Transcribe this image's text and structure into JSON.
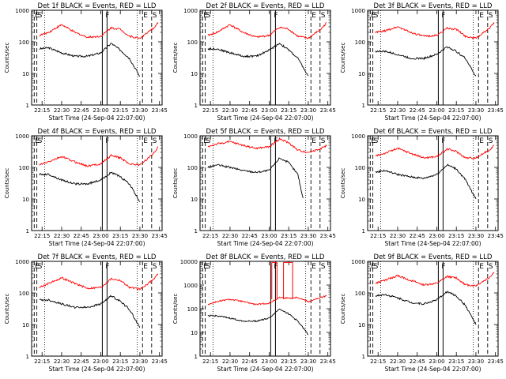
{
  "colors": {
    "events": "#000000",
    "lld": "#ff0000",
    "background": "#ffffff"
  },
  "chart_data": [
    {
      "type": "line",
      "title": "Det 1f BLACK = Events, RED = LLD",
      "ylabel": "Counts/sec",
      "xlabel": "Start Time (24-Sep-04 22:07:00)",
      "x_ticks": [
        "22:15",
        "22:30",
        "22:45",
        "23:00",
        "23:15",
        "23:30",
        "23:45"
      ],
      "y_ticks": [
        "1",
        "10",
        "100",
        "1000"
      ],
      "yscale": "log",
      "ylim": [
        1,
        1000
      ],
      "xlim": [
        "22:07",
        "23:47"
      ],
      "markers": [
        {
          "label": "E",
          "time": "22:09"
        },
        {
          "label": "S",
          "time": "22:11"
        },
        {
          "label": "F",
          "time": "23:03"
        },
        {
          "label": "E",
          "time": "23:32"
        },
        {
          "label": "S",
          "time": "23:39"
        }
      ],
      "series": [
        {
          "name": "Events",
          "x": [
            "22:13",
            "22:20",
            "22:30",
            "22:40",
            "22:50",
            "23:00",
            "23:08",
            "23:15",
            "23:22",
            "23:30"
          ],
          "y": [
            60,
            65,
            45,
            35,
            35,
            45,
            90,
            55,
            30,
            8
          ]
        },
        {
          "name": "LLD",
          "x": [
            "22:13",
            "22:20",
            "22:30",
            "22:40",
            "22:50",
            "23:00",
            "23:08",
            "23:15",
            "23:22",
            "23:30",
            "23:40",
            "23:44"
          ],
          "y": [
            160,
            200,
            350,
            200,
            140,
            150,
            280,
            250,
            150,
            130,
            260,
            400
          ]
        }
      ]
    },
    {
      "type": "line",
      "title": "Det 2f BLACK = Events, RED = LLD",
      "ylabel": "Counts/sec",
      "xlabel": "Start Time (24-Sep-04 22:07:00)",
      "x_ticks": [
        "22:15",
        "22:30",
        "22:45",
        "23:00",
        "23:15",
        "23:30",
        "23:45"
      ],
      "y_ticks": [
        "1",
        "10",
        "100",
        "1000"
      ],
      "yscale": "log",
      "ylim": [
        1,
        1000
      ],
      "xlim": [
        "22:07",
        "23:47"
      ],
      "markers": [
        {
          "label": "E",
          "time": "22:09"
        },
        {
          "label": "S",
          "time": "22:11"
        },
        {
          "label": "F",
          "time": "23:03"
        },
        {
          "label": "E",
          "time": "23:32"
        },
        {
          "label": "S",
          "time": "23:39"
        }
      ],
      "series": [
        {
          "name": "Events",
          "x": [
            "22:13",
            "22:20",
            "22:30",
            "22:40",
            "22:50",
            "23:00",
            "23:08",
            "23:15",
            "23:22",
            "23:30"
          ],
          "y": [
            60,
            60,
            45,
            35,
            35,
            55,
            90,
            55,
            30,
            8
          ]
        },
        {
          "name": "LLD",
          "x": [
            "22:13",
            "22:20",
            "22:30",
            "22:40",
            "22:50",
            "23:00",
            "23:08",
            "23:15",
            "23:22",
            "23:30",
            "23:40",
            "23:44"
          ],
          "y": [
            160,
            200,
            350,
            200,
            140,
            160,
            290,
            250,
            150,
            130,
            260,
            400
          ]
        }
      ]
    },
    {
      "type": "line",
      "title": "Det 3f BLACK = Events, RED = LLD",
      "ylabel": "Counts/sec",
      "xlabel": "Start Time (24-Sep-04 22:07:00)",
      "x_ticks": [
        "22:15",
        "22:30",
        "22:45",
        "23:00",
        "23:15",
        "23:30",
        "23:45"
      ],
      "y_ticks": [
        "1",
        "10",
        "100",
        "1000"
      ],
      "yscale": "log",
      "ylim": [
        1,
        1000
      ],
      "xlim": [
        "22:07",
        "23:47"
      ],
      "markers": [
        {
          "label": "E",
          "time": "22:09"
        },
        {
          "label": "S",
          "time": "22:11"
        },
        {
          "label": "F",
          "time": "23:03"
        },
        {
          "label": "E",
          "time": "23:32"
        },
        {
          "label": "S",
          "time": "23:39"
        }
      ],
      "series": [
        {
          "name": "Events",
          "x": [
            "22:13",
            "22:20",
            "22:30",
            "22:40",
            "22:50",
            "23:00",
            "23:08",
            "23:15",
            "23:22",
            "23:30"
          ],
          "y": [
            50,
            50,
            40,
            30,
            30,
            40,
            70,
            50,
            30,
            8
          ]
        },
        {
          "name": "LLD",
          "x": [
            "22:13",
            "22:20",
            "22:30",
            "22:40",
            "22:50",
            "23:00",
            "23:08",
            "23:15",
            "23:22",
            "23:30",
            "23:40",
            "23:44"
          ],
          "y": [
            200,
            220,
            300,
            200,
            150,
            160,
            270,
            250,
            150,
            130,
            260,
            400
          ]
        }
      ]
    },
    {
      "type": "line",
      "title": "Det 4f BLACK = Events, RED = LLD",
      "ylabel": "Counts/sec",
      "xlabel": "Start Time (24-Sep-04 22:07:00)",
      "x_ticks": [
        "22:15",
        "22:30",
        "22:45",
        "23:00",
        "23:15",
        "23:30",
        "23:45"
      ],
      "y_ticks": [
        "1",
        "10",
        "100",
        "1000"
      ],
      "yscale": "log",
      "ylim": [
        1,
        1000
      ],
      "xlim": [
        "22:07",
        "23:47"
      ],
      "markers": [
        {
          "label": "E",
          "time": "22:09"
        },
        {
          "label": "S",
          "time": "22:11"
        },
        {
          "label": "F",
          "time": "23:03"
        },
        {
          "label": "E",
          "time": "23:32"
        },
        {
          "label": "S",
          "time": "23:39"
        }
      ],
      "series": [
        {
          "name": "Events",
          "x": [
            "22:13",
            "22:20",
            "22:30",
            "22:40",
            "22:50",
            "23:00",
            "23:08",
            "23:15",
            "23:22",
            "23:30"
          ],
          "y": [
            60,
            60,
            40,
            30,
            30,
            40,
            70,
            50,
            30,
            8
          ]
        },
        {
          "name": "LLD",
          "x": [
            "22:13",
            "22:20",
            "22:30",
            "22:40",
            "22:50",
            "23:00",
            "23:08",
            "23:15",
            "23:22",
            "23:30",
            "23:40",
            "23:44"
          ],
          "y": [
            120,
            150,
            220,
            150,
            110,
            130,
            240,
            200,
            130,
            120,
            260,
            450
          ]
        }
      ]
    },
    {
      "type": "line",
      "title": "Det 5f BLACK = Events, RED = LLD",
      "ylabel": "Counts/sec",
      "xlabel": "Start Time (24-Sep-04 22:07:00)",
      "x_ticks": [
        "22:15",
        "22:30",
        "22:45",
        "23:00",
        "23:15",
        "23:30",
        "23:45"
      ],
      "y_ticks": [
        "1",
        "10",
        "100",
        "1000"
      ],
      "yscale": "log",
      "ylim": [
        1,
        1000
      ],
      "xlim": [
        "22:07",
        "23:47"
      ],
      "markers": [
        {
          "label": "E",
          "time": "22:09"
        },
        {
          "label": "S",
          "time": "22:11"
        },
        {
          "label": "F",
          "time": "23:03"
        },
        {
          "label": "E",
          "time": "23:32"
        },
        {
          "label": "S",
          "time": "23:39"
        }
      ],
      "series": [
        {
          "name": "Events",
          "x": [
            "22:13",
            "22:20",
            "22:30",
            "22:40",
            "22:50",
            "23:00",
            "23:08",
            "23:15",
            "23:22",
            "23:26"
          ],
          "y": [
            100,
            120,
            100,
            80,
            70,
            80,
            200,
            140,
            60,
            10
          ]
        },
        {
          "name": "LLD",
          "x": [
            "22:13",
            "22:20",
            "22:30",
            "22:40",
            "22:50",
            "23:00",
            "23:08",
            "23:15",
            "23:22",
            "23:30",
            "23:40",
            "23:44"
          ],
          "y": [
            450,
            550,
            650,
            500,
            400,
            450,
            800,
            600,
            350,
            300,
            400,
            500
          ]
        }
      ]
    },
    {
      "type": "line",
      "title": "Det 6f BLACK = Events, RED = LLD",
      "ylabel": "Counts/sec",
      "xlabel": "Start Time (24-Sep-04 22:07:00)",
      "x_ticks": [
        "22:15",
        "22:30",
        "22:45",
        "23:00",
        "23:15",
        "23:30",
        "23:45"
      ],
      "y_ticks": [
        "1",
        "10",
        "100",
        "1000"
      ],
      "yscale": "log",
      "ylim": [
        1,
        1000
      ],
      "xlim": [
        "22:07",
        "23:47"
      ],
      "markers": [
        {
          "label": "E",
          "time": "22:09"
        },
        {
          "label": "S",
          "time": "22:11"
        },
        {
          "label": "F",
          "time": "23:03"
        },
        {
          "label": "E",
          "time": "23:32"
        },
        {
          "label": "S",
          "time": "23:39"
        }
      ],
      "series": [
        {
          "name": "Events",
          "x": [
            "22:13",
            "22:20",
            "22:30",
            "22:40",
            "22:50",
            "23:00",
            "23:08",
            "23:15",
            "23:22",
            "23:30"
          ],
          "y": [
            70,
            80,
            60,
            50,
            45,
            60,
            120,
            90,
            40,
            10
          ]
        },
        {
          "name": "LLD",
          "x": [
            "22:13",
            "22:20",
            "22:30",
            "22:40",
            "22:50",
            "23:00",
            "23:08",
            "23:15",
            "23:22",
            "23:30",
            "23:40",
            "23:44"
          ],
          "y": [
            230,
            280,
            400,
            280,
            200,
            220,
            380,
            320,
            200,
            200,
            350,
            500
          ]
        }
      ]
    },
    {
      "type": "line",
      "title": "Det 7f BLACK = Events, RED = LLD",
      "ylabel": "Counts/sec",
      "xlabel": "Start Time (24-Sep-04 22:07:00)",
      "x_ticks": [
        "22:15",
        "22:30",
        "22:45",
        "23:00",
        "23:15",
        "23:30",
        "23:45"
      ],
      "y_ticks": [
        "1",
        "10",
        "100",
        "1000"
      ],
      "yscale": "log",
      "ylim": [
        1,
        1000
      ],
      "xlim": [
        "22:07",
        "23:47"
      ],
      "markers": [
        {
          "label": "E",
          "time": "22:09"
        },
        {
          "label": "S",
          "time": "22:11"
        },
        {
          "label": "F",
          "time": "23:03"
        },
        {
          "label": "E",
          "time": "23:32"
        },
        {
          "label": "S",
          "time": "23:39"
        }
      ],
      "series": [
        {
          "name": "Events",
          "x": [
            "22:13",
            "22:20",
            "22:30",
            "22:40",
            "22:50",
            "23:00",
            "23:08",
            "23:15",
            "23:22",
            "23:30"
          ],
          "y": [
            60,
            60,
            45,
            35,
            35,
            45,
            80,
            55,
            30,
            8
          ]
        },
        {
          "name": "LLD",
          "x": [
            "22:13",
            "22:20",
            "22:30",
            "22:40",
            "22:50",
            "23:00",
            "23:08",
            "23:15",
            "23:22",
            "23:30",
            "23:40",
            "23:44"
          ],
          "y": [
            150,
            200,
            300,
            200,
            140,
            150,
            280,
            250,
            150,
            130,
            260,
            400
          ]
        }
      ]
    },
    {
      "type": "line",
      "title": "Det 8f BLACK = Events, RED = LLD",
      "ylabel": "Counts/sec",
      "xlabel": "Start Time (24-Sep-04 22:07:00)",
      "x_ticks": [
        "22:15",
        "22:30",
        "22:45",
        "23:00",
        "23:15",
        "23:30",
        "23:45"
      ],
      "y_ticks": [
        "1",
        "10",
        "100",
        "1000",
        "10000"
      ],
      "yscale": "log",
      "ylim": [
        1,
        10000
      ],
      "xlim": [
        "22:07",
        "23:47"
      ],
      "markers": [
        {
          "label": "E",
          "time": "22:09"
        },
        {
          "label": "S",
          "time": "22:11"
        },
        {
          "label": "F",
          "time": "23:03"
        },
        {
          "label": "E",
          "time": "23:32"
        },
        {
          "label": "S",
          "time": "23:39"
        }
      ],
      "series": [
        {
          "name": "Events",
          "x": [
            "22:13",
            "22:20",
            "22:30",
            "22:40",
            "22:50",
            "23:00",
            "23:08",
            "23:15",
            "23:22",
            "23:30"
          ],
          "y": [
            50,
            50,
            40,
            30,
            30,
            40,
            100,
            60,
            30,
            8
          ]
        },
        {
          "name": "LLD",
          "x": [
            "22:13",
            "22:20",
            "22:30",
            "22:40",
            "22:50",
            "23:00",
            "23:08",
            "23:15",
            "23:22",
            "23:30",
            "23:40",
            "23:44"
          ],
          "y": [
            150,
            200,
            250,
            200,
            150,
            170,
            300,
            280,
            300,
            200,
            300,
            350
          ]
        }
      ]
    },
    {
      "type": "line",
      "title": "Det 9f BLACK = Events, RED = LLD",
      "ylabel": "Counts/sec",
      "xlabel": "Start Time (24-Sep-04 22:07:00)",
      "x_ticks": [
        "22:15",
        "22:30",
        "22:45",
        "23:00",
        "23:15",
        "23:30",
        "23:45"
      ],
      "y_ticks": [
        "1",
        "10",
        "100",
        "1000"
      ],
      "yscale": "log",
      "ylim": [
        1,
        1000
      ],
      "xlim": [
        "22:07",
        "23:47"
      ],
      "markers": [
        {
          "label": "E",
          "time": "22:09"
        },
        {
          "label": "S",
          "time": "22:11"
        },
        {
          "label": "F",
          "time": "23:03"
        },
        {
          "label": "E",
          "time": "23:32"
        },
        {
          "label": "S",
          "time": "23:39"
        }
      ],
      "series": [
        {
          "name": "Events",
          "x": [
            "22:13",
            "22:20",
            "22:30",
            "22:40",
            "22:50",
            "23:00",
            "23:08",
            "23:15",
            "23:22",
            "23:30"
          ],
          "y": [
            80,
            90,
            70,
            50,
            45,
            60,
            110,
            80,
            40,
            10
          ]
        },
        {
          "name": "LLD",
          "x": [
            "22:13",
            "22:20",
            "22:30",
            "22:40",
            "22:50",
            "23:00",
            "23:08",
            "23:15",
            "23:22",
            "23:30",
            "23:40",
            "23:44"
          ],
          "y": [
            200,
            250,
            350,
            250,
            180,
            200,
            330,
            300,
            180,
            170,
            300,
            450
          ]
        }
      ]
    }
  ]
}
